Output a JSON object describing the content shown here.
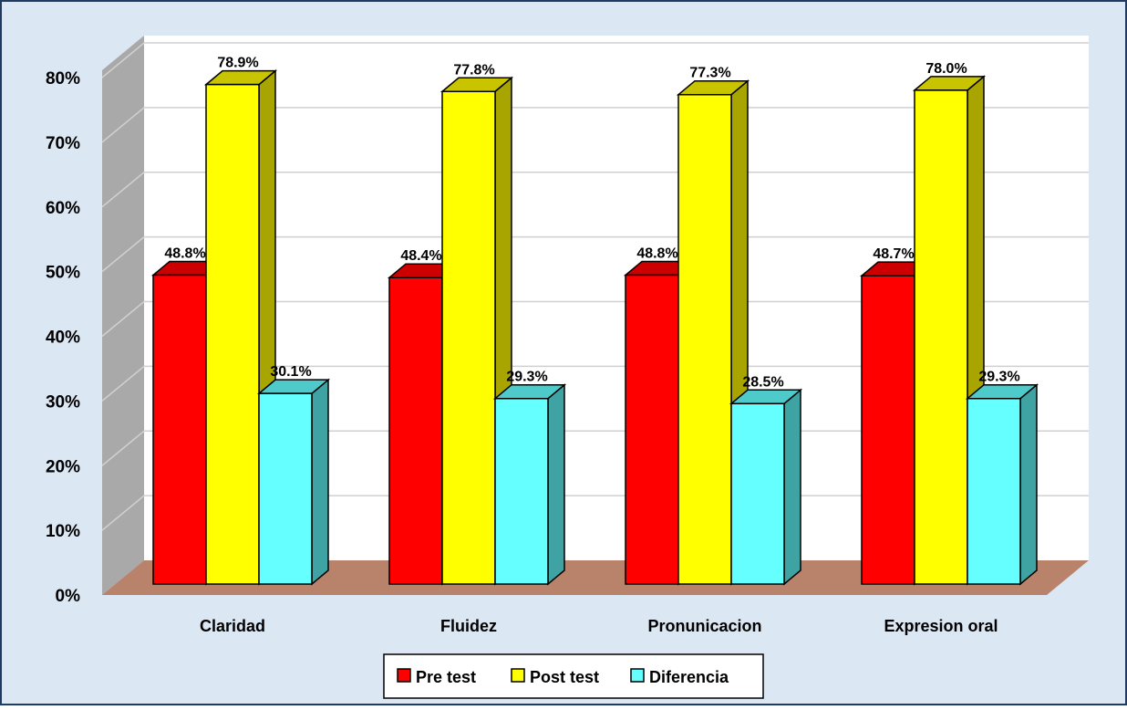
{
  "colors": {
    "frame_bg": "#dce7f4",
    "frame_border": "#1f3b63",
    "back_wall": "#ffffff",
    "side_wall": "#a9a9a9",
    "floor": "#b8836a",
    "gridline": "#d0d0d0"
  },
  "chart_data": {
    "type": "bar",
    "style": "3d-clustered-column",
    "categories": [
      "Claridad",
      "Fluidez",
      "Pronunicacion",
      "Expresion oral"
    ],
    "series": [
      {
        "name": "Pre test",
        "values": [
          48.8,
          48.4,
          48.8,
          48.7
        ],
        "labels": [
          "48.8%",
          "48.4%",
          "48.8%",
          "48.7%"
        ],
        "color": "#ff0000",
        "side_color": "#b00000",
        "top_color": "#cc0000"
      },
      {
        "name": "Post test",
        "values": [
          78.9,
          77.8,
          77.3,
          78.0
        ],
        "labels": [
          "78.9%",
          "77.8%",
          "77.3%",
          "78.0%"
        ],
        "color": "#ffff00",
        "side_color": "#a8a400",
        "top_color": "#c8c400"
      },
      {
        "name": "Diferencia",
        "values": [
          30.1,
          29.3,
          28.5,
          29.3
        ],
        "labels": [
          "30.1%",
          "29.3%",
          "28.5%",
          "29.3%"
        ],
        "color": "#66ffff",
        "side_color": "#3fa3a3",
        "top_color": "#4fcaca"
      }
    ],
    "y_ticks": [
      "0%",
      "10%",
      "20%",
      "30%",
      "40%",
      "50%",
      "60%",
      "70%",
      "80%"
    ],
    "ylim": [
      0,
      80
    ],
    "grid": true,
    "legend_position": "bottom-center",
    "title": "",
    "xlabel": "",
    "ylabel": ""
  }
}
